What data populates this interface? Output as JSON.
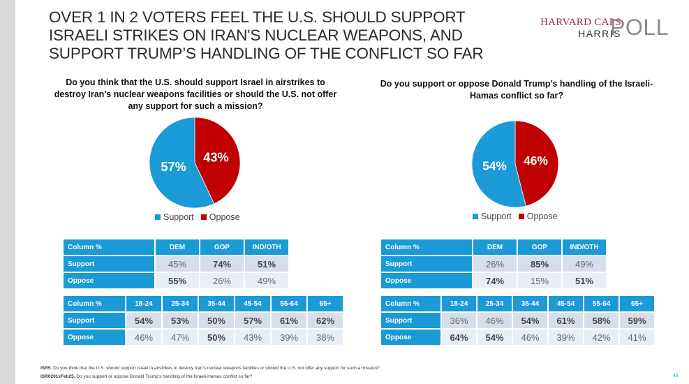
{
  "title": "OVER 1 IN 2 VOTERS FEEL THE U.S. SHOULD SUPPORT ISRAELI STRIKES ON IRAN'S NUCLEAR WEAPONS, AND SUPPORT TRUMP’S HANDLING OF THE CONFLICT SO FAR",
  "logo": {
    "line1": "HARVARD CAPS",
    "line2": "HARRIS",
    "word": "POLL"
  },
  "colors": {
    "support": "#1a9ad6",
    "oppose": "#c00000",
    "header": "#1a9ad6"
  },
  "chart_data": [
    {
      "type": "pie",
      "title": "Do you think that the U.S. should support Israel in airstrikes to destroy Iran’s nuclear weapons facilities or should the U.S. not offer any support for such a mission?",
      "categories": [
        "Support",
        "Oppose"
      ],
      "values": [
        57,
        43
      ],
      "labels": [
        "57%",
        "43%"
      ],
      "legend": "bottom",
      "table_party": {
        "header": [
          "Column %",
          "DEM",
          "GOP",
          "IND/OTH"
        ],
        "rows": [
          {
            "label": "Support",
            "values": [
              "45%",
              "74%",
              "51%"
            ],
            "bold": [
              false,
              true,
              true
            ]
          },
          {
            "label": "Oppose",
            "values": [
              "55%",
              "26%",
              "49%"
            ],
            "bold": [
              true,
              false,
              false
            ]
          }
        ]
      },
      "table_age": {
        "header": [
          "Column %",
          "18-24",
          "25-34",
          "35-44",
          "45-54",
          "55-64",
          "65+"
        ],
        "rows": [
          {
            "label": "Support",
            "values": [
              "54%",
              "53%",
              "50%",
              "57%",
              "61%",
              "62%"
            ],
            "bold": [
              true,
              true,
              true,
              true,
              true,
              true
            ]
          },
          {
            "label": "Oppose",
            "values": [
              "46%",
              "47%",
              "50%",
              "43%",
              "39%",
              "38%"
            ],
            "bold": [
              false,
              false,
              true,
              false,
              false,
              false
            ]
          }
        ]
      }
    },
    {
      "type": "pie",
      "title": "Do you support or oppose Donald Trump’s handling of the Israeli-Hamas conflict so far?",
      "categories": [
        "Support",
        "Oppose"
      ],
      "values": [
        54,
        46
      ],
      "labels": [
        "54%",
        "46%"
      ],
      "legend": "bottom",
      "table_party": {
        "header": [
          "Column %",
          "DEM",
          "GOP",
          "IND/OTH"
        ],
        "rows": [
          {
            "label": "Support",
            "values": [
              "26%",
              "85%",
              "49%"
            ],
            "bold": [
              false,
              true,
              false
            ]
          },
          {
            "label": "Oppose",
            "values": [
              "74%",
              "15%",
              "51%"
            ],
            "bold": [
              true,
              false,
              true
            ]
          }
        ]
      },
      "table_age": {
        "header": [
          "Column %",
          "18-24",
          "25-34",
          "35-44",
          "45-54",
          "55-64",
          "65+"
        ],
        "rows": [
          {
            "label": "Support",
            "values": [
              "36%",
              "46%",
              "54%",
              "61%",
              "58%",
              "59%"
            ],
            "bold": [
              false,
              false,
              true,
              true,
              true,
              true
            ]
          },
          {
            "label": "Oppose",
            "values": [
              "64%",
              "54%",
              "46%",
              "39%",
              "42%",
              "41%"
            ],
            "bold": [
              true,
              true,
              false,
              false,
              false,
              false
            ]
          }
        ]
      }
    }
  ],
  "footnotes": [
    {
      "code": "ISR5.",
      "text": " Do you think that the U.S. should support Israel in airstrikes to destroy Iran’s nuclear weapons facilities or should the U.S. not offer any support for such a mission?"
    },
    {
      "code": "ISR0201xFeb25.",
      "text": " Do you support or oppose Donald Trump’s handling of the Israeli-Hamas conflict so far?"
    }
  ],
  "page_number": "46"
}
